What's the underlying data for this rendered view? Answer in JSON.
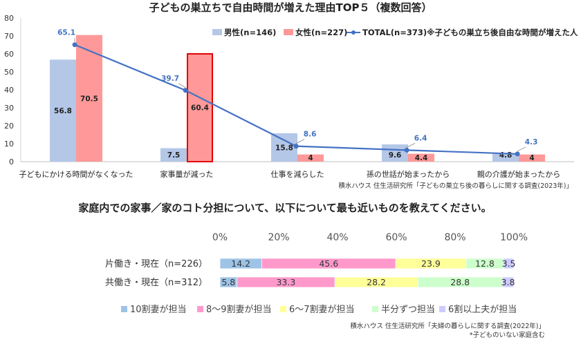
{
  "chart_data": [
    {
      "type": "bar",
      "title": "子どもの巣立ちで自由時間が増えた理由TOP５（複数回答）",
      "categories": [
        "子どもにかける時間がなくなった",
        "家事量が減った",
        "仕事を減らした",
        "孫の世話が始まったから",
        "親の介護が始まったから"
      ],
      "ylim": [
        0,
        80
      ],
      "yticks": [
        0,
        10,
        20,
        30,
        40,
        50,
        60,
        70,
        80
      ],
      "grid": false,
      "legend_position": "top-right",
      "highlight_bar": {
        "series": 1,
        "index": 1,
        "border_color": "#e00000"
      },
      "series": [
        {
          "name": "男性(n=146)",
          "kind": "bar",
          "color": "#b4c7e7",
          "values": [
            56.8,
            7.5,
            15.8,
            9.6,
            4.8
          ]
        },
        {
          "name": "女性(n=227)",
          "kind": "bar",
          "color": "#ff9999",
          "values": [
            70.5,
            60.4,
            4.0,
            4.4,
            4.0
          ]
        },
        {
          "name": "TOTAL(n=373)※子どもの巣立ち後自由な時間が増えた人",
          "kind": "line",
          "color": "#4472c4",
          "values": [
            65.1,
            39.7,
            8.6,
            6.4,
            4.3
          ]
        }
      ],
      "source": "積水ハウス 住生活研究所「子どもの巣立ち後の暮らしに関する調査(2023年)」"
    },
    {
      "type": "bar",
      "orientation": "horizontal",
      "stacked": true,
      "title": "家庭内での家事／家のコト分担について、以下について最も近いものを教えてください。",
      "categories": [
        "片働き・現在（n=226）",
        "共働き・現在（n=312）"
      ],
      "xticks": [
        "0%",
        "20%",
        "40%",
        "60%",
        "80%",
        "100%"
      ],
      "xlim": [
        0,
        100
      ],
      "legend_position": "bottom",
      "series": [
        {
          "name": "10割妻が担当",
          "color": "#9dc3e6",
          "values": [
            14.2,
            5.8
          ]
        },
        {
          "name": "8～9割妻が担当",
          "color": "#ff99cc",
          "values": [
            45.6,
            33.3
          ]
        },
        {
          "name": "6～7割妻が担当",
          "color": "#ffff99",
          "values": [
            23.9,
            28.2
          ]
        },
        {
          "name": "半分ずつ担当",
          "color": "#ccffcc",
          "values": [
            12.8,
            28.8
          ]
        },
        {
          "name": "6割以上夫が担当",
          "color": "#ccccff",
          "values": [
            3.5,
            3.8
          ]
        }
      ],
      "source": "積水ハウス 住生活研究所「夫婦の暮らしに関する調査(2022年)」",
      "footnote": "*子どものいない家庭含む"
    }
  ]
}
